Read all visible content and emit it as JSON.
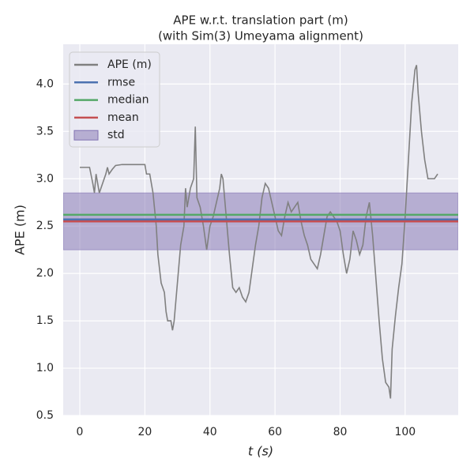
{
  "chart_data": {
    "type": "line",
    "title": [
      "APE w.r.t. translation part (m)",
      "(with Sim(3) Umeyama alignment)"
    ],
    "x_label": "t (s)",
    "y_label": "APE (m)",
    "xlim": [
      -5.1,
      116.3
    ],
    "ylim": [
      0.5,
      4.42
    ],
    "xticks": [
      0,
      20,
      40,
      60,
      80,
      100
    ],
    "yticks": [
      {
        "value": 0.5,
        "label": "0.5"
      },
      {
        "value": 1.0,
        "label": "1.0"
      },
      {
        "value": 1.5,
        "label": "1.5"
      },
      {
        "value": 2.0,
        "label": "2.0"
      },
      {
        "value": 2.5,
        "label": "2.5"
      },
      {
        "value": 3.0,
        "label": "3.0"
      },
      {
        "value": 3.5,
        "label": "3.5"
      },
      {
        "value": 4.0,
        "label": "4.0"
      }
    ],
    "grid": true,
    "legend": "upper left",
    "series": [
      {
        "name": "APE (m)",
        "color": "#808080",
        "x": [
          0,
          2,
          3,
          4,
          4.5,
          5,
          6,
          7,
          8,
          8.5,
          9,
          10,
          11,
          13,
          20,
          20.5,
          21.5,
          22.5,
          23.5,
          24,
          25,
          26,
          26.5,
          27,
          28,
          28.5,
          29,
          30,
          31,
          32,
          32.5,
          33,
          34,
          35,
          35.5,
          36,
          37,
          38,
          39,
          40,
          41,
          42,
          43,
          43.5,
          44,
          45,
          46,
          47,
          48,
          49,
          50,
          51,
          52,
          53,
          54,
          55,
          56,
          57,
          58,
          59,
          60,
          61,
          62,
          63,
          64,
          65,
          66,
          67,
          68,
          69,
          70,
          71,
          72,
          73,
          74,
          75,
          76,
          77,
          78,
          79,
          80,
          81,
          82,
          83,
          84,
          85,
          86,
          87,
          88,
          89,
          90,
          91,
          92,
          93,
          94,
          95,
          95.5,
          96,
          97,
          98,
          99,
          100,
          101,
          102,
          103,
          103.5,
          104,
          105,
          106,
          107,
          108,
          109,
          110
        ],
        "values": [
          3.12,
          3.12,
          3.12,
          2.95,
          2.85,
          3.05,
          2.85,
          2.95,
          3.05,
          3.12,
          3.05,
          3.1,
          3.14,
          3.15,
          3.15,
          3.05,
          3.05,
          2.85,
          2.5,
          2.2,
          1.9,
          1.8,
          1.6,
          1.5,
          1.5,
          1.4,
          1.5,
          1.9,
          2.3,
          2.5,
          2.9,
          2.7,
          2.9,
          3.0,
          3.55,
          2.8,
          2.7,
          2.5,
          2.25,
          2.5,
          2.6,
          2.75,
          2.9,
          3.05,
          3.0,
          2.6,
          2.2,
          1.85,
          1.8,
          1.85,
          1.75,
          1.7,
          1.8,
          2.05,
          2.3,
          2.5,
          2.8,
          2.95,
          2.9,
          2.75,
          2.6,
          2.45,
          2.4,
          2.6,
          2.75,
          2.65,
          2.7,
          2.75,
          2.55,
          2.4,
          2.3,
          2.15,
          2.1,
          2.05,
          2.2,
          2.4,
          2.6,
          2.65,
          2.6,
          2.55,
          2.45,
          2.2,
          2.0,
          2.15,
          2.45,
          2.35,
          2.2,
          2.3,
          2.6,
          2.75,
          2.4,
          1.95,
          1.5,
          1.1,
          0.85,
          0.8,
          0.68,
          1.2,
          1.55,
          1.85,
          2.1,
          2.6,
          3.2,
          3.8,
          4.15,
          4.2,
          3.9,
          3.5,
          3.2,
          3.0,
          3.0,
          3.0,
          3.05
        ]
      }
    ],
    "stats": [
      {
        "name": "rmse",
        "color": "#4c72b0",
        "value": 2.57
      },
      {
        "name": "median",
        "color": "#55a868",
        "value": 2.62
      },
      {
        "name": "mean",
        "color": "#c44e52",
        "value": 2.55
      },
      {
        "name": "std",
        "color": "#8172b2",
        "value": 0.3
      }
    ]
  }
}
